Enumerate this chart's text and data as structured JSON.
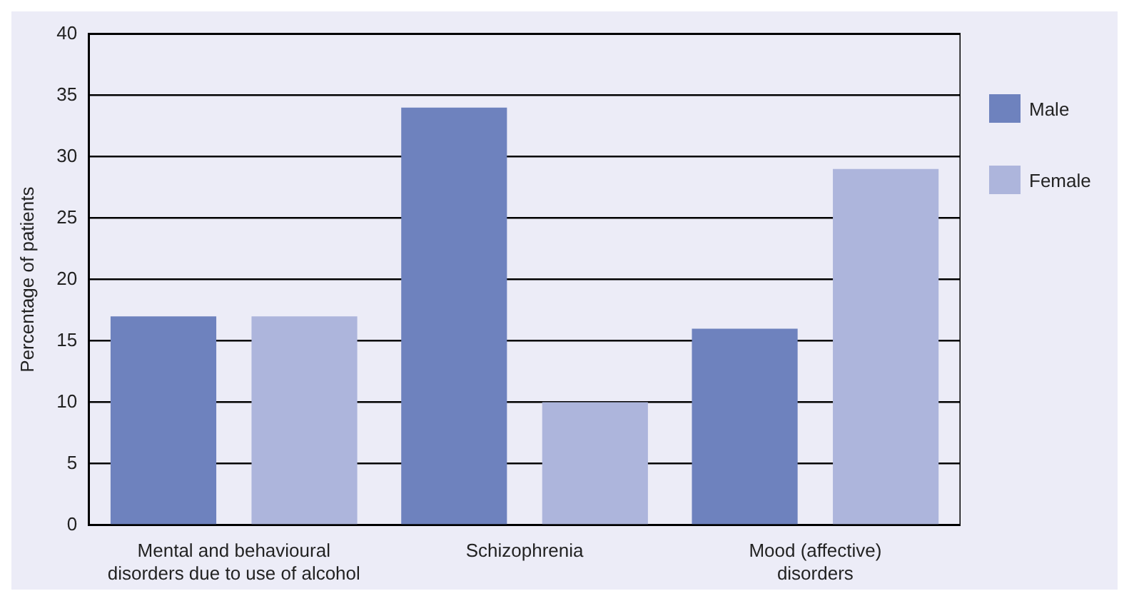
{
  "chart_data": {
    "type": "bar",
    "ylabel": "Percentage of patients",
    "categories": [
      "Mental and behavioural disorders due to use of alcohol",
      "Schizophrenia",
      "Mood (affective) disorders"
    ],
    "series": [
      {
        "name": "Male",
        "color": "#6e82be",
        "values": [
          17,
          34,
          16
        ]
      },
      {
        "name": "Female",
        "color": "#adb5dc",
        "values": [
          17,
          10,
          29
        ]
      }
    ],
    "ylim": [
      0,
      40
    ],
    "yticks": [
      0,
      5,
      10,
      15,
      20,
      25,
      30,
      35,
      40
    ],
    "grid": "y",
    "legend": "right"
  }
}
